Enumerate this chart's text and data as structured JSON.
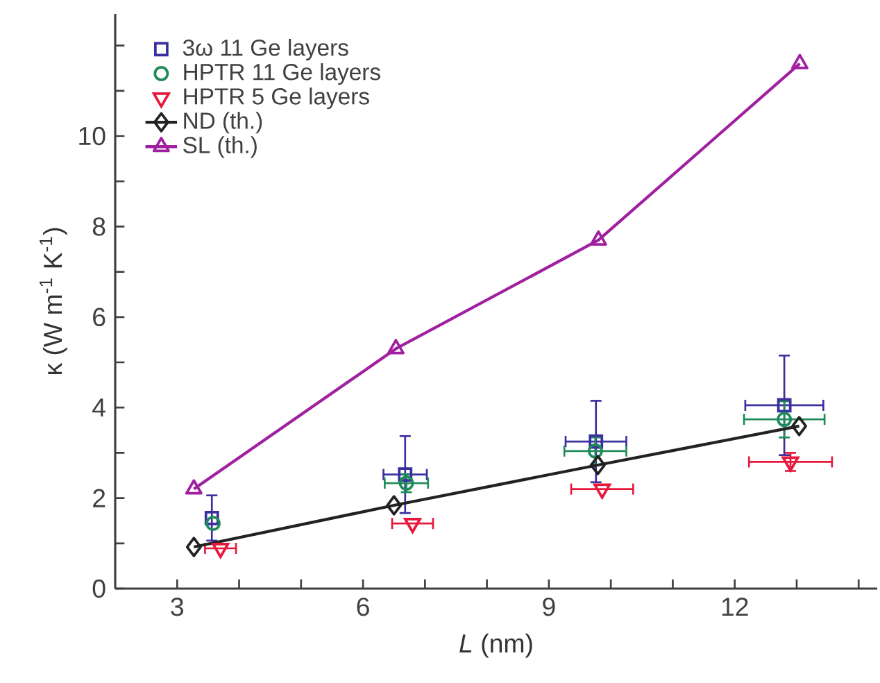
{
  "chart_data": {
    "type": "scatter",
    "xlabel": "*L* (nm)",
    "ylabel": "κ (W m$^{-1}$ K$^{-1}$)",
    "xlim": [
      2,
      14.3
    ],
    "ylim": [
      0,
      12.7
    ],
    "xticks": [
      3,
      {
        "value": 4,
        "label": null
      },
      {
        "value": 5,
        "label": null
      },
      6,
      {
        "value": 7,
        "label": null
      },
      {
        "value": 8,
        "label": null
      },
      9,
      {
        "value": 10,
        "label": null
      },
      {
        "value": 11,
        "label": null
      },
      12,
      {
        "value": 13,
        "label": null
      },
      {
        "value": 14,
        "label": null
      }
    ],
    "yticks": [
      0,
      {
        "value": 1,
        "label": null
      },
      2,
      {
        "value": 3,
        "label": null
      },
      4,
      {
        "value": 5,
        "label": null
      },
      6,
      {
        "value": 7,
        "label": null
      },
      8,
      {
        "value": 9,
        "label": null
      },
      10,
      {
        "value": 11,
        "label": null
      },
      {
        "value": 12,
        "label": null
      }
    ],
    "grid": false,
    "legend": "top left",
    "series": [
      {
        "name": "3ω 11 Ge layers",
        "marker": "square",
        "color": "#3a2f9e",
        "x": [
          3.56,
          6.68,
          9.76,
          12.8
        ],
        "values": [
          1.56,
          2.52,
          3.25,
          4.05
        ],
        "errors": [
          0.5,
          0.85,
          0.9,
          1.1
        ],
        "xerrors": [
          null,
          0.35,
          0.49,
          0.63
        ]
      },
      {
        "name": "HPTR 11 Ge layers",
        "marker": "circle",
        "color": "#1f8a5a",
        "x": [
          3.58,
          6.7,
          9.75,
          12.8
        ],
        "values": [
          1.44,
          2.33,
          3.04,
          3.74
        ],
        "errors": [
          null,
          0.2,
          0.3,
          0.4
        ],
        "xerrors": [
          null,
          0.35,
          0.5,
          0.65
        ]
      },
      {
        "name": "HPTR 5  Ge layers",
        "marker": "triangle-down",
        "color": "#e8183c",
        "x": [
          3.7,
          6.8,
          9.86,
          12.9
        ],
        "values": [
          0.89,
          1.44,
          2.2,
          2.8
        ],
        "errors": [
          null,
          null,
          null,
          0.2
        ],
        "xerrors": [
          0.25,
          0.33,
          0.5,
          0.67
        ]
      },
      {
        "name": "ND (th.)",
        "type": "line",
        "marker": "diamond",
        "color": "#222222",
        "x": [
          3.27,
          6.5,
          9.79,
          13.04
        ],
        "values": [
          0.92,
          1.84,
          2.73,
          3.59
        ]
      },
      {
        "name": "SL (th.)",
        "type": "line",
        "marker": "triangle",
        "color": "#a020a0",
        "x": [
          3.27,
          6.53,
          9.8,
          13.05
        ],
        "values": [
          2.2,
          5.3,
          7.7,
          11.6
        ]
      }
    ]
  }
}
